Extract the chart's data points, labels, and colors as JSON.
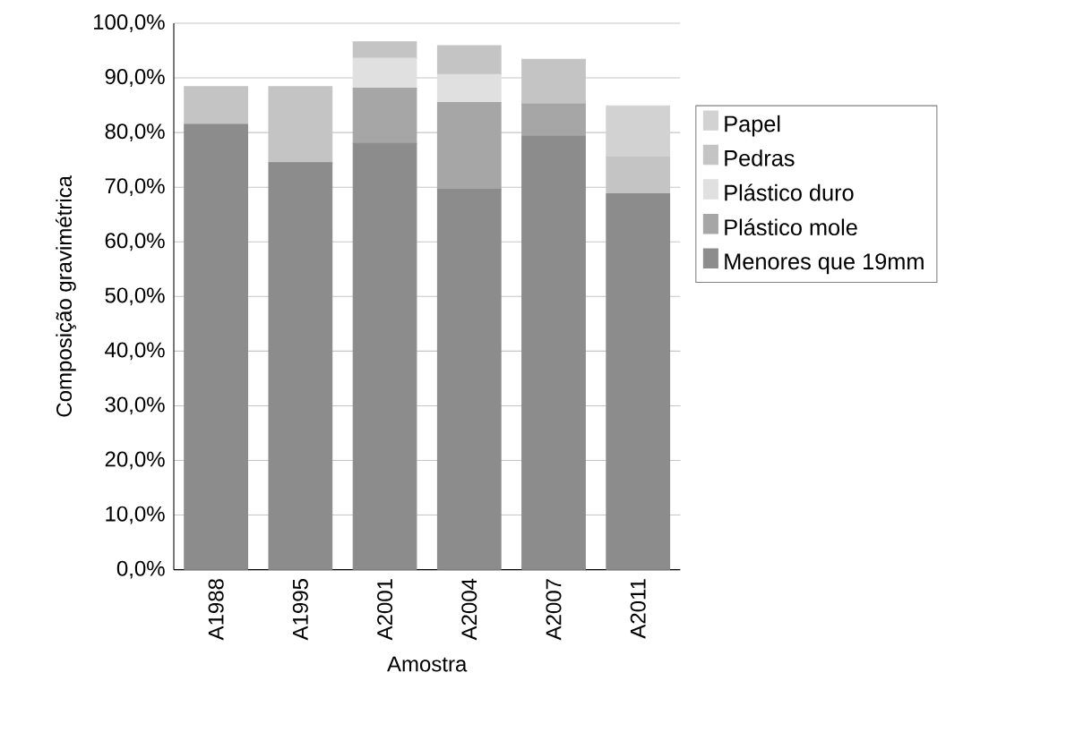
{
  "chart_data": {
    "type": "bar",
    "stacked": true,
    "xlabel": "Amostra",
    "ylabel": "Composição gravimétrica",
    "categories": [
      "A1988",
      "A1995",
      "A2001",
      "A2004",
      "A2007",
      "A2011"
    ],
    "series": [
      {
        "name": "Menores que 19mm",
        "color": "#8c8c8c",
        "values": [
          81.5,
          74.5,
          78.0,
          69.6,
          79.3,
          68.8
        ]
      },
      {
        "name": "Plástico mole",
        "color": "#a6a6a6",
        "values": [
          null,
          null,
          10.1,
          15.9,
          5.9,
          null
        ]
      },
      {
        "name": "Plástico duro",
        "color": "#e0e0e0",
        "values": [
          null,
          null,
          5.5,
          5.1,
          null,
          null
        ]
      },
      {
        "name": "Pedras",
        "color": "#c4c4c4",
        "values": [
          6.9,
          13.9,
          3.0,
          5.3,
          8.2,
          6.7
        ]
      },
      {
        "name": "Papel",
        "color": "#d2d2d2",
        "values": [
          null,
          null,
          null,
          null,
          null,
          9.4
        ]
      }
    ],
    "ylim": [
      0,
      100
    ],
    "yticks": [
      {
        "value": 0,
        "label": "0,0%"
      },
      {
        "value": 10,
        "label": "10,0%"
      },
      {
        "value": 20,
        "label": "20,0%"
      },
      {
        "value": 30,
        "label": "30,0%"
      },
      {
        "value": 40,
        "label": "40,0%"
      },
      {
        "value": 50,
        "label": "50,0%"
      },
      {
        "value": 60,
        "label": "60,0%"
      },
      {
        "value": 70,
        "label": "70,0%"
      },
      {
        "value": 80,
        "label": "80,0%"
      },
      {
        "value": 90,
        "label": "90,0%"
      },
      {
        "value": 100,
        "label": "100,0%"
      }
    ],
    "grid": "y",
    "legend": "right"
  }
}
